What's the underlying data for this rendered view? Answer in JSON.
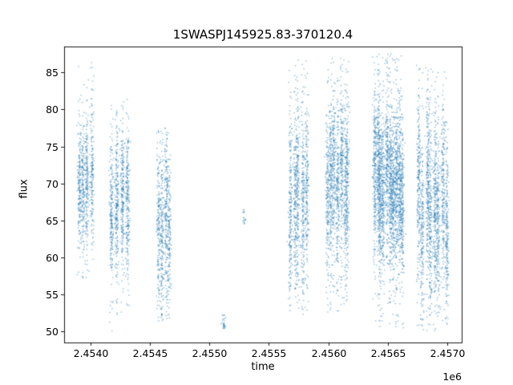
{
  "chart_data": {
    "type": "scatter",
    "title": "1SWASPJ145925.83-370120.4",
    "xlabel": "time",
    "ylabel": "flux",
    "x_offset_text": "1e6",
    "xlim": [
      2453780,
      2457120
    ],
    "ylim": [
      48.5,
      88.5
    ],
    "x_ticks": [
      2454000,
      2454500,
      2455000,
      2455500,
      2456000,
      2456500,
      2457000
    ],
    "x_tick_labels": [
      "2.4540",
      "2.4545",
      "2.4550",
      "2.4555",
      "2.4560",
      "2.4565",
      "2.4570"
    ],
    "y_ticks": [
      50,
      55,
      60,
      65,
      70,
      75,
      80,
      85
    ],
    "y_tick_labels": [
      "50",
      "55",
      "60",
      "65",
      "70",
      "75",
      "80",
      "85"
    ],
    "grid": false,
    "legend": "none",
    "marker_color": "#1f77b4",
    "marker_alpha": 0.5,
    "marker_size_px": 1.4,
    "clusters": [
      {
        "x_start": 2453880,
        "x_end": 2454030,
        "columns": 4,
        "y_mean": 68.5,
        "y_sd": 4.5,
        "y_min": 57.0,
        "y_max": 86.5,
        "count": 750
      },
      {
        "x_start": 2454170,
        "x_end": 2454340,
        "columns": 4,
        "y_mean": 67.0,
        "y_sd": 5.0,
        "y_min": 50.0,
        "y_max": 81.5,
        "count": 950
      },
      {
        "x_start": 2454560,
        "x_end": 2454690,
        "columns": 4,
        "y_mean": 66.0,
        "y_sd": 5.5,
        "y_min": 51.0,
        "y_max": 77.5,
        "count": 750
      },
      {
        "x_start": 2455105,
        "x_end": 2455130,
        "columns": 1,
        "y_mean": 51.8,
        "y_sd": 0.8,
        "y_min": 50.3,
        "y_max": 53.5,
        "count": 30
      },
      {
        "x_start": 2455280,
        "x_end": 2455310,
        "columns": 1,
        "y_mean": 66.0,
        "y_sd": 0.8,
        "y_min": 64.5,
        "y_max": 67.5,
        "count": 18
      },
      {
        "x_start": 2455665,
        "x_end": 2455835,
        "columns": 5,
        "y_mean": 68.0,
        "y_sd": 6.0,
        "y_min": 52.0,
        "y_max": 87.0,
        "count": 1050
      },
      {
        "x_start": 2455968,
        "x_end": 2456185,
        "columns": 7,
        "y_mean": 69.0,
        "y_sd": 5.5,
        "y_min": 52.5,
        "y_max": 87.0,
        "count": 1450
      },
      {
        "x_start": 2456372,
        "x_end": 2456642,
        "columns": 10,
        "y_mean": 70.0,
        "y_sd": 5.5,
        "y_min": 50.0,
        "y_max": 87.5,
        "count": 2600
      },
      {
        "x_start": 2456742,
        "x_end": 2457012,
        "columns": 8,
        "y_mean": 67.5,
        "y_sd": 6.0,
        "y_min": 50.0,
        "y_max": 86.0,
        "count": 1800
      }
    ]
  }
}
